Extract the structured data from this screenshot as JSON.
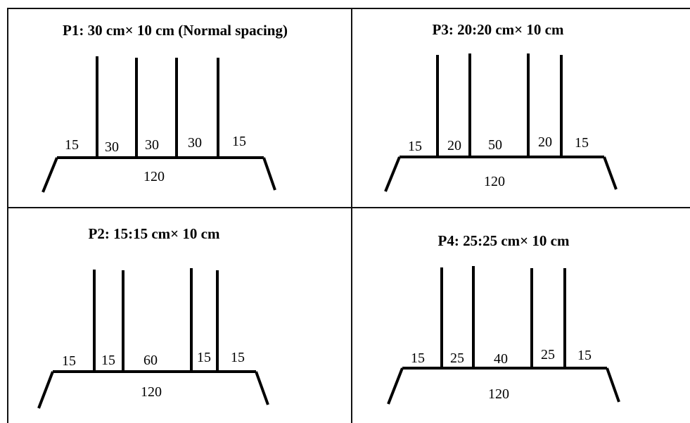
{
  "panels": [
    {
      "id": "p1",
      "title": "P1: 30 cm× 10 cm (Normal spacing)",
      "spacings": [
        "15",
        "30",
        "30",
        "30",
        "15"
      ],
      "total": "120"
    },
    {
      "id": "p3",
      "title": "P3: 20:20 cm× 10 cm",
      "spacings": [
        "15",
        "20",
        "50",
        "20",
        "15"
      ],
      "total": "120"
    },
    {
      "id": "p2",
      "title": "P2: 15:15 cm× 10 cm",
      "spacings": [
        "15",
        "15",
        "60",
        "15",
        "15"
      ],
      "total": "120"
    },
    {
      "id": "p4",
      "title": "P4: 25:25 cm× 10 cm",
      "spacings": [
        "15",
        "25",
        "40",
        "25",
        "15"
      ],
      "total": "120"
    }
  ]
}
